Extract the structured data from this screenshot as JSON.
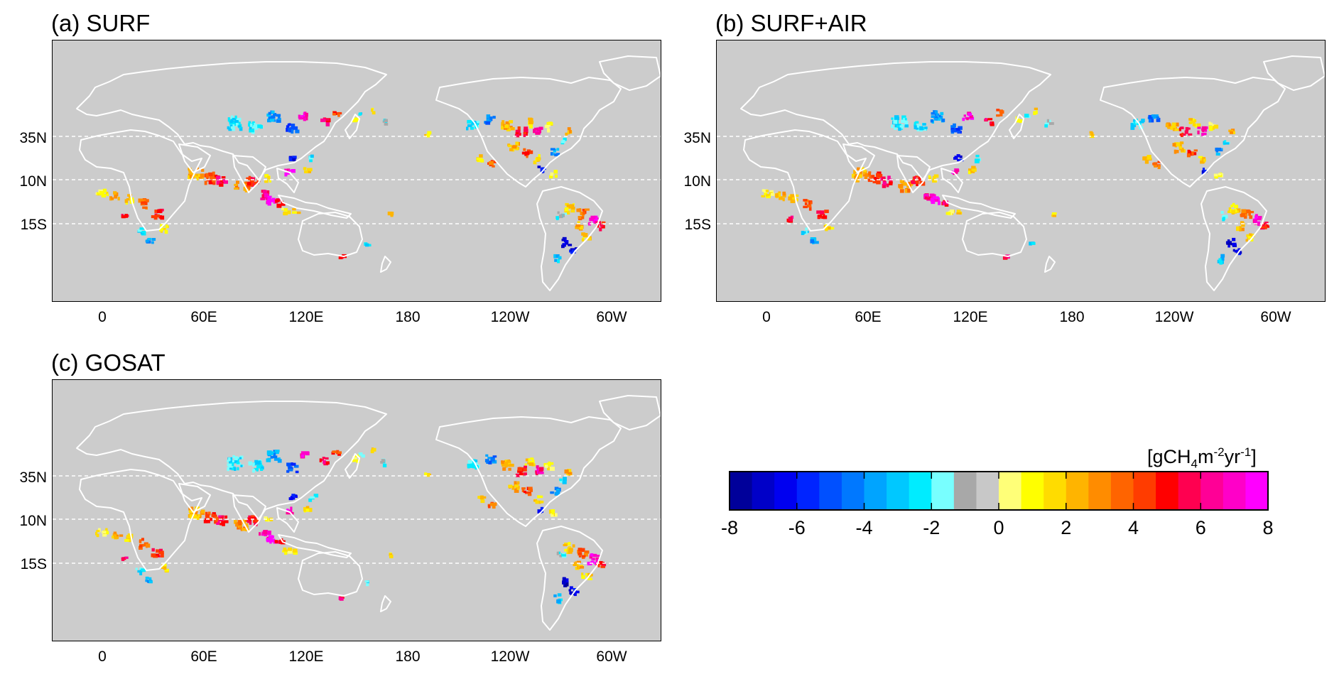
{
  "panels": [
    {
      "id": "a",
      "title": "(a) SURF"
    },
    {
      "id": "b",
      "title": "(b) SURF+AIR"
    },
    {
      "id": "c",
      "title": "(c) GOSAT"
    }
  ],
  "lat_labels": [
    "35N",
    "10N",
    "15S"
  ],
  "lon_labels": [
    "0",
    "60E",
    "120E",
    "180",
    "120W",
    "60W"
  ],
  "colorbar": {
    "unit_main": "[gCH",
    "unit_sub4": "4",
    "unit_m": "m",
    "unit_sup2": "-2",
    "unit_yr": "yr",
    "unit_sup1": "-1",
    "unit_close": "]",
    "ticks": [
      "-8",
      "-6",
      "-4",
      "-2",
      "0",
      "2",
      "4",
      "6",
      "8"
    ],
    "colors": [
      "#00009a",
      "#0000c8",
      "#0000f0",
      "#0024ff",
      "#0050ff",
      "#0078ff",
      "#00a4ff",
      "#00c8ff",
      "#00ecff",
      "#78ffff",
      "#a8a8a8",
      "#c8c8c8",
      "#ffff78",
      "#ffff00",
      "#ffdc00",
      "#ffb400",
      "#ff8c00",
      "#ff6400",
      "#ff3c00",
      "#ff0000",
      "#ff0050",
      "#ff0096",
      "#ff00c8",
      "#ff00ff"
    ]
  },
  "map_colors": {
    "background": "#cccccc",
    "coast": "#ffffff",
    "gridline": "#ffffff"
  }
}
